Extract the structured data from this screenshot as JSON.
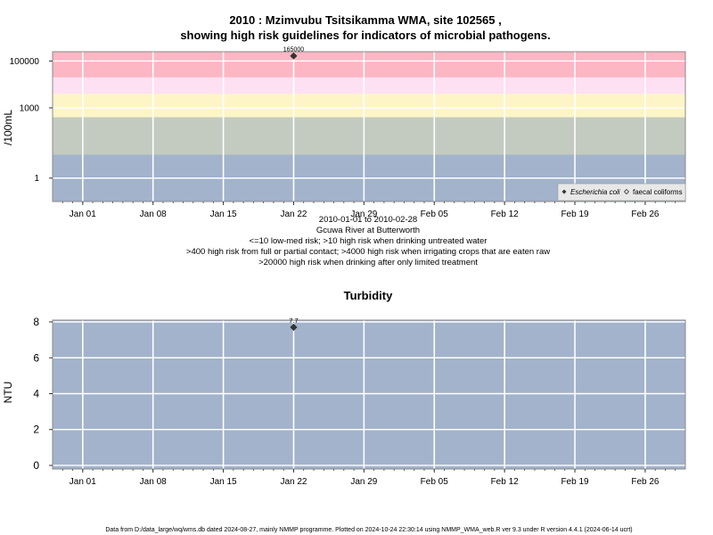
{
  "chart_data": [
    {
      "type": "scatter",
      "title_line1": "2010 : Mzimvubu Tsitsikamma WMA, site 102565 ,",
      "title_line2": "showing high risk guidelines for indicators of microbial pathogens.",
      "ylabel": "/100mL",
      "y_scale": "log",
      "y_ticks": [
        {
          "value": 1,
          "label": "1"
        },
        {
          "value": 1000,
          "label": "1000"
        },
        {
          "value": 100000,
          "label": "100000"
        }
      ],
      "ylim": [
        0.1,
        250000
      ],
      "bands": [
        {
          "from": 0.1,
          "to": 10,
          "color": "#a2b3cb"
        },
        {
          "from": 10,
          "to": 400,
          "color": "#c3cbc0"
        },
        {
          "from": 400,
          "to": 4000,
          "color": "#fdf5c6"
        },
        {
          "from": 4000,
          "to": 20000,
          "color": "#fde0f2"
        },
        {
          "from": 20000,
          "to": 250000,
          "color": "#fdb6c4"
        }
      ],
      "series": [
        {
          "name": "Escherichia coli",
          "marker": "filled-diamond",
          "points": [
            {
              "x": "2010-01-22",
              "y": 165000,
              "label": "165000"
            }
          ]
        },
        {
          "name": "faecal coliforms",
          "marker": "open-diamond",
          "points": []
        }
      ],
      "legend": {
        "placement": "bottom-right",
        "entries": [
          "Escherichia coli",
          "faecal coliforms"
        ]
      },
      "subtitle_lines": [
        "2010-01-01 to 2010-02-28",
        "Gcuwa River at Butterworth",
        "<=10 low-med risk; >10 high risk when drinking untreated water",
        ">400 high risk from full or partial contact; >4000 high risk when irrigating crops that are eaten raw",
        ">20000 high risk when drinking after only limited treatment"
      ]
    },
    {
      "type": "scatter",
      "title": "Turbidity",
      "ylabel": "NTU",
      "y_scale": "linear",
      "y_ticks": [
        {
          "value": 0,
          "label": "0"
        },
        {
          "value": 2,
          "label": "2"
        },
        {
          "value": 4,
          "label": "4"
        },
        {
          "value": 6,
          "label": "6"
        },
        {
          "value": 8,
          "label": "8"
        }
      ],
      "ylim": [
        -0.2,
        8.1
      ],
      "background": "#a2b3cb",
      "series": [
        {
          "marker": "filled-diamond",
          "points": [
            {
              "x": "2010-01-22",
              "y": 7.7,
              "label": "7.7"
            }
          ]
        }
      ]
    }
  ],
  "x_axis": {
    "range": [
      "2009-12-29",
      "2010-03-02"
    ],
    "ticks": [
      {
        "date": "2010-01-01",
        "label": "Jan 01"
      },
      {
        "date": "2010-01-08",
        "label": "Jan 08"
      },
      {
        "date": "2010-01-15",
        "label": "Jan 15"
      },
      {
        "date": "2010-01-22",
        "label": "Jan 22"
      },
      {
        "date": "2010-01-29",
        "label": "Jan 29"
      },
      {
        "date": "2010-02-05",
        "label": "Feb 05"
      },
      {
        "date": "2010-02-12",
        "label": "Feb 12"
      },
      {
        "date": "2010-02-19",
        "label": "Feb 19"
      },
      {
        "date": "2010-02-26",
        "label": "Feb 26"
      }
    ]
  },
  "footer": "Data from D:/data_large/wq/wms.db dated 2024-08-27, mainly NMMP programme. Plotted on 2024-10-24 22:30:14 using NMMP_WMA_web.R ver 9.3 under R version 4.4.1 (2024-06-14 ucrt)"
}
